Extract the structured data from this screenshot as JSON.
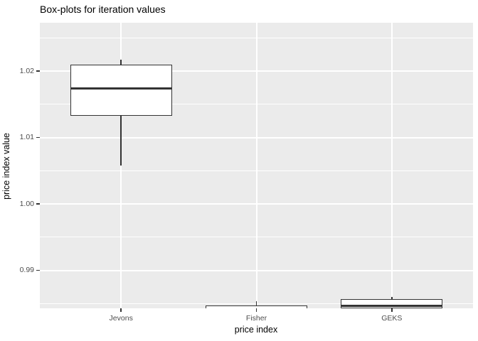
{
  "title": "Box-plots for iteration values",
  "chart_data": {
    "type": "boxplot",
    "title": "Box-plots for iteration values",
    "xlabel": "price index",
    "ylabel": "price index value",
    "categories": [
      "Jevons",
      "Fisher",
      "GEKS"
    ],
    "ylim": [
      0.9843,
      1.0273
    ],
    "yticks_major": [
      {
        "value": 0.99,
        "label": "0.99"
      },
      {
        "value": 1.0,
        "label": "1.00"
      },
      {
        "value": 1.01,
        "label": "1.01"
      },
      {
        "value": 1.02,
        "label": "1.02"
      }
    ],
    "yticks_minor": [
      0.985,
      0.995,
      1.005,
      1.015,
      1.025
    ],
    "series": [
      {
        "name": "Jevons",
        "whisker_low": 1.0092,
        "q1": 1.0167,
        "median": 1.0208,
        "q3": 1.0244,
        "whisker_high": 1.0252
      },
      {
        "name": "Fisher",
        "whisker_low": 0.9863,
        "q1": 0.9866,
        "median": 0.9874,
        "q3": 0.9882,
        "whisker_high": 0.9888
      },
      {
        "name": "GEKS",
        "whisker_low": 0.9873,
        "q1": 0.9877,
        "median": 0.9881,
        "q3": 0.9891,
        "whisker_high": 0.9894
      }
    ],
    "grid": true,
    "legend": false
  },
  "colors": {
    "panel_background": "#ebebeb",
    "grid": "#ffffff",
    "box_border": "#333333",
    "box_fill": "#ffffff",
    "median": "#333333",
    "tick_mark": "#333333",
    "tick_label": "#4d4d4d",
    "axis_title": "#000000",
    "title": "#000000",
    "figure_background": "#ffffff"
  }
}
